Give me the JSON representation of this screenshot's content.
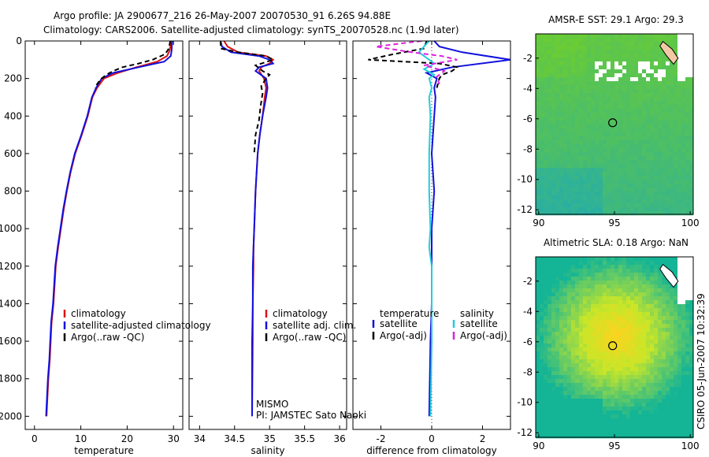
{
  "title": {
    "line1": "Argo profile: JA 2900677_216 26-May-2007 20070530_91 6.26S 94.88E",
    "line2": "Climatology: CARS2006. Satellite-adjusted climatology: synTS_20070528.nc (1.9d later)"
  },
  "side_stamp": "CSIRO 05-Jun-2007 10:32:39",
  "colors": {
    "clim": "#dd1111",
    "sat": "#1111dd",
    "argo": "#000000",
    "sal_sat": "#22ccdd",
    "sal_argo": "#dd22dd"
  },
  "chart_data": [
    {
      "type": "line",
      "id": "temperature",
      "xlabel": "temperature",
      "xlim": [
        -2,
        32
      ],
      "ylim": [
        0,
        2070
      ],
      "y_reversed": true,
      "xticks": [
        0,
        10,
        20,
        30
      ],
      "yticks": [
        0,
        200,
        400,
        600,
        800,
        1000,
        1200,
        1400,
        1600,
        1800,
        2000
      ],
      "legend": [
        "climatology",
        "satellite-adjusted climatology",
        "Argo(..raw -QC)"
      ],
      "series": [
        {
          "name": "climatology",
          "style": "clim",
          "x": [
            29.5,
            29.2,
            28.6,
            26.5,
            22,
            18,
            15,
            13.5,
            12.5,
            11.5,
            10.2,
            8.8,
            7.8,
            7,
            6.3,
            5.7,
            5.1,
            4.6,
            4.1,
            3.7,
            3.3,
            3.0,
            2.6
          ],
          "y": [
            0,
            50,
            80,
            110,
            140,
            170,
            200,
            250,
            300,
            400,
            500,
            600,
            700,
            800,
            900,
            1000,
            1100,
            1200,
            1400,
            1500,
            1700,
            1800,
            2000
          ]
        },
        {
          "name": "satellite-adjusted climatology",
          "style": "sat",
          "x": [
            29.7,
            29.6,
            29.4,
            28,
            22.5,
            17,
            14.5,
            13.3,
            12.4,
            11.4,
            10.1,
            8.7,
            7.7,
            6.9,
            6.2,
            5.6,
            5.0,
            4.5,
            4.0,
            3.6,
            3.2,
            2.9,
            2.5
          ],
          "y": [
            0,
            50,
            80,
            110,
            140,
            170,
            200,
            250,
            300,
            400,
            500,
            600,
            700,
            800,
            900,
            1000,
            1100,
            1200,
            1400,
            1500,
            1700,
            1800,
            2000
          ]
        },
        {
          "name": "Argo(..raw -QC)",
          "style": "argo",
          "x": [
            29.3,
            29.0,
            28.2,
            25.5,
            22.5,
            19,
            17,
            15.5,
            14.5,
            13.8,
            13
          ],
          "y": [
            0,
            40,
            70,
            100,
            120,
            140,
            160,
            180,
            200,
            220,
            250
          ]
        }
      ]
    },
    {
      "type": "line",
      "id": "salinity",
      "xlabel": "salinity",
      "xlim": [
        33.85,
        36.1
      ],
      "ylim": [
        0,
        2070
      ],
      "y_reversed": true,
      "xticks": [
        34,
        34.5,
        35,
        35.5,
        36
      ],
      "legend": [
        "climatology",
        "satellite adj. clim.",
        "Argo(..raw -QC)"
      ],
      "annotations": [
        "MISMO",
        "PI: JAMSTEC Sato Naoki"
      ],
      "series": [
        {
          "name": "climatology",
          "style": "clim",
          "x": [
            34.35,
            34.4,
            34.55,
            34.95,
            35.05,
            35.0,
            34.88,
            34.85,
            34.92,
            34.95,
            34.93,
            34.9,
            34.86,
            34.83,
            34.8,
            34.78,
            34.77,
            34.77,
            34.76,
            34.76,
            34.75
          ],
          "y": [
            0,
            30,
            60,
            80,
            100,
            120,
            140,
            160,
            200,
            250,
            300,
            400,
            500,
            600,
            800,
            1000,
            1100,
            1200,
            1400,
            1600,
            2000
          ]
        },
        {
          "name": "satellite adj. clim.",
          "style": "sat",
          "x": [
            34.3,
            34.32,
            34.45,
            34.85,
            35.0,
            35.05,
            34.85,
            34.8,
            34.95,
            34.97,
            34.95,
            34.9,
            34.86,
            34.83,
            34.8,
            34.78,
            34.77,
            34.76,
            34.76,
            34.75,
            34.75
          ],
          "y": [
            0,
            30,
            60,
            80,
            100,
            120,
            140,
            160,
            200,
            250,
            300,
            400,
            500,
            600,
            800,
            1000,
            1100,
            1200,
            1400,
            1600,
            2000
          ]
        },
        {
          "name": "Argo(..raw -QC)",
          "style": "argo",
          "x": [
            34.3,
            34.3,
            34.55,
            34.95,
            35.05,
            34.8,
            34.9,
            35.0,
            34.95,
            34.88,
            34.9,
            34.87,
            34.85,
            34.8,
            34.78
          ],
          "y": [
            0,
            40,
            60,
            80,
            100,
            130,
            160,
            180,
            200,
            240,
            280,
            350,
            420,
            500,
            600
          ]
        }
      ]
    },
    {
      "type": "line",
      "id": "difference",
      "xlabel": "difference from climatology",
      "xlim": [
        -3.1,
        3.1
      ],
      "ylim": [
        0,
        2070
      ],
      "y_reversed": true,
      "xticks": [
        -2,
        0,
        2
      ],
      "legend_groups": [
        {
          "header": "temperature",
          "items": [
            "satellite",
            "Argo(-adj)"
          ]
        },
        {
          "header": "salinity",
          "items": [
            "satellite",
            "Argo(-adj)"
          ]
        }
      ],
      "series": [
        {
          "name": "temperature satellite",
          "style": "sat",
          "x": [
            0.1,
            0.3,
            1.2,
            3.1,
            0.8,
            -0.2,
            0.2,
            0.1,
            0.15,
            0.1,
            0.05,
            0.0,
            0.05,
            0.1,
            0.0,
            0.0,
            0.0,
            -0.05,
            -0.1
          ],
          "y": [
            0,
            30,
            60,
            100,
            140,
            170,
            200,
            250,
            300,
            400,
            500,
            600,
            700,
            800,
            1000,
            1200,
            1400,
            1600,
            2000
          ]
        },
        {
          "name": "temperature Argo(-adj)",
          "style": "argo",
          "x": [
            -0.2,
            -0.3,
            -1.5,
            -2.5,
            0.3,
            1.0,
            0.8,
            0.4,
            0.3,
            0.2
          ],
          "y": [
            0,
            40,
            70,
            100,
            120,
            140,
            160,
            180,
            200,
            250
          ]
        },
        {
          "name": "salinity satellite",
          "style": "sal_sat",
          "x": [
            -0.1,
            -0.3,
            -0.5,
            -0.2,
            0.1,
            -0.3,
            0.1,
            -0.1,
            0.0,
            -0.1,
            -0.05,
            -0.1,
            -0.1,
            -0.05,
            -0.1,
            0.0,
            0.0,
            0.0,
            -0.05
          ],
          "y": [
            0,
            30,
            60,
            90,
            120,
            150,
            180,
            200,
            250,
            300,
            400,
            600,
            800,
            1000,
            1100,
            1200,
            1400,
            1600,
            2000
          ]
        },
        {
          "name": "salinity Argo(-adj)",
          "style": "sal_argo",
          "x": [
            -0.4,
            -2.2,
            -0.8,
            0.4,
            1.0,
            -0.3,
            0.5,
            0.2,
            0.3
          ],
          "y": [
            0,
            30,
            60,
            80,
            100,
            130,
            160,
            190,
            230
          ]
        }
      ]
    },
    {
      "type": "heatmap",
      "id": "sst-map",
      "title": "AMSR-E SST: 29.1 Argo: 29.3",
      "xlim": [
        89.8,
        100.2
      ],
      "ylim": [
        -12.3,
        -0.4
      ],
      "xticks": [
        90,
        95,
        100
      ],
      "yticks": [
        -2,
        -4,
        -6,
        -8,
        -10,
        -12
      ],
      "marker": {
        "lon": 94.88,
        "lat": -6.26
      }
    },
    {
      "type": "heatmap",
      "id": "sla-map",
      "title": "Altimetric SLA: 0.18 Argo: NaN",
      "xlim": [
        89.8,
        100.2
      ],
      "ylim": [
        -12.3,
        -0.4
      ],
      "xticks": [
        90,
        95,
        100
      ],
      "yticks": [
        -2,
        -4,
        -6,
        -8,
        -10,
        -12
      ],
      "marker": {
        "lon": 94.88,
        "lat": -6.26
      }
    }
  ]
}
